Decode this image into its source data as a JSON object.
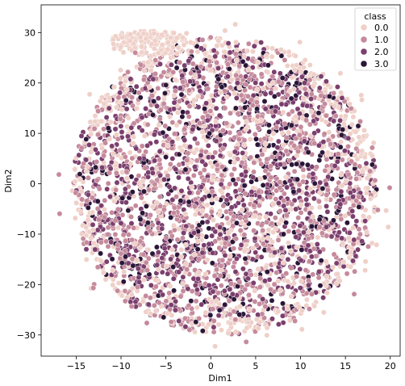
{
  "chart_data": {
    "type": "scatter",
    "xlabel": "Dim1",
    "ylabel": "Dim2",
    "xlim": [
      -18.9,
      21.1
    ],
    "ylim": [
      -34.2,
      35.5
    ],
    "x_ticks": [
      -15,
      -10,
      -5,
      0,
      5,
      10,
      15,
      20
    ],
    "y_ticks": [
      -30,
      -20,
      -10,
      0,
      10,
      20,
      30
    ],
    "x_tick_labels": [
      "−15",
      "−10",
      "−5",
      "0",
      "5",
      "10",
      "15",
      "20"
    ],
    "y_tick_labels": [
      "−30",
      "−20",
      "−10",
      "0",
      "10",
      "20",
      "30"
    ],
    "grid": false,
    "legend": {
      "title": "class",
      "placement": "top-right",
      "entries": [
        {
          "label": "0.0",
          "color": "#efd0c8"
        },
        {
          "label": "1.0",
          "color": "#c58a9c"
        },
        {
          "label": "2.0",
          "color": "#7b3f6e"
        },
        {
          "label": "3.0",
          "color": "#2a1638"
        }
      ]
    },
    "series": [
      {
        "class": "0.0",
        "color": "#efd0c8"
      },
      {
        "class": "1.0",
        "color": "#c58a9c"
      },
      {
        "class": "2.0",
        "color": "#7b3f6e"
      },
      {
        "class": "3.0",
        "color": "#2a1638"
      }
    ],
    "point_cloud": {
      "shape": "disc",
      "center": [
        1.5,
        -0.5
      ],
      "radius_x": 17.0,
      "radius_y": 29.5,
      "extra_cluster": {
        "class": "0.0",
        "center": [
          -7.0,
          28.0
        ],
        "spread": [
          4.5,
          2.5
        ]
      }
    }
  }
}
